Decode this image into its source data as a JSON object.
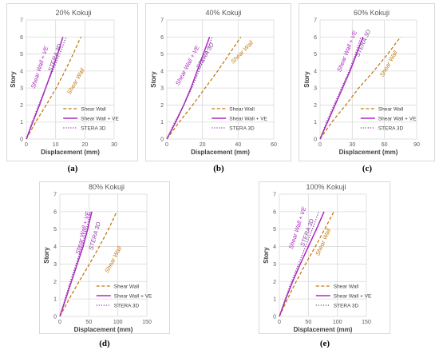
{
  "legend_labels": [
    "Shear Wall",
    "Shear Wall + VE",
    "STERA 3D"
  ],
  "inline_labels": [
    "Shear Wall + VE",
    "STERA 3D",
    "Shear Wall"
  ],
  "colors": {
    "shear_wall": "#c47a12",
    "shear_wall_ve": "#b026c6",
    "stera_3d": "#8a3fa0",
    "grid": "#d9d9d9",
    "axis_text": "#595959"
  },
  "captions": [
    "(a)",
    "(b)",
    "(c)",
    "(d)",
    "(e)"
  ],
  "chart_data": [
    {
      "type": "line",
      "title": "20% Kokuji",
      "xlabel": "Displacement (mm)",
      "ylabel": "Story",
      "xlim": [
        0,
        30
      ],
      "ylim": [
        0,
        7
      ],
      "xticks": [
        0,
        10,
        20,
        30
      ],
      "yticks": [
        0,
        1,
        2,
        3,
        4,
        5,
        6,
        7
      ],
      "grid": true,
      "legend": "lower-right",
      "series": [
        {
          "name": "Shear Wall",
          "style": "dashed",
          "x": [
            0,
            3.2,
            6.8,
            10.2,
            13.2,
            16.0,
            18.6
          ],
          "y": [
            0,
            1,
            2,
            3,
            4,
            5,
            6
          ]
        },
        {
          "name": "Shear Wall + VE",
          "style": "solid",
          "x": [
            0,
            2.2,
            4.5,
            6.6,
            8.7,
            10.7,
            12.5
          ],
          "y": [
            0,
            1,
            2,
            3,
            4,
            5,
            6
          ]
        },
        {
          "name": "STERA 3D",
          "style": "dotted",
          "x": [
            0,
            2.0,
            4.2,
            6.6,
            9.0,
            11.4,
            13.6
          ],
          "y": [
            0,
            1,
            2,
            3,
            4,
            5,
            6
          ]
        }
      ]
    },
    {
      "type": "line",
      "title": "40% Kokuji",
      "xlabel": "Displacement (mm)",
      "ylabel": "Story",
      "xlim": [
        0,
        60
      ],
      "ylim": [
        0,
        7
      ],
      "xticks": [
        0,
        20,
        40,
        60
      ],
      "yticks": [
        0,
        1,
        2,
        3,
        4,
        5,
        6,
        7
      ],
      "grid": true,
      "legend": "lower-right",
      "series": [
        {
          "name": "Shear Wall",
          "style": "dashed",
          "x": [
            0,
            7,
            14.5,
            21.5,
            28.5,
            35,
            41.5
          ],
          "y": [
            0,
            1,
            2,
            3,
            4,
            5,
            6
          ]
        },
        {
          "name": "Shear Wall + VE",
          "style": "solid",
          "x": [
            0,
            5,
            9.5,
            13.5,
            17,
            20.5,
            24
          ],
          "y": [
            0,
            1,
            2,
            3,
            4,
            5,
            6
          ]
        },
        {
          "name": "STERA 3D",
          "style": "dotted",
          "x": [
            0,
            4.5,
            9.5,
            14,
            18,
            22,
            25.5
          ],
          "y": [
            0,
            1,
            2,
            3,
            4,
            5,
            6
          ]
        }
      ]
    },
    {
      "type": "line",
      "title": "60% Kokuji",
      "xlabel": "Displacement (mm)",
      "ylabel": "Story",
      "xlim": [
        0,
        90
      ],
      "ylim": [
        0,
        7
      ],
      "xticks": [
        0,
        30,
        60,
        90
      ],
      "yticks": [
        0,
        1,
        2,
        3,
        4,
        5,
        6,
        7
      ],
      "grid": true,
      "legend": "lower-right",
      "series": [
        {
          "name": "Shear Wall",
          "style": "dashed",
          "x": [
            0,
            11,
            24,
            36,
            50,
            63,
            75
          ],
          "y": [
            0,
            1,
            2,
            3,
            4,
            5,
            6
          ]
        },
        {
          "name": "Shear Wall + VE",
          "style": "solid",
          "x": [
            0,
            7,
            14,
            21,
            28,
            34,
            40
          ],
          "y": [
            0,
            1,
            2,
            3,
            4,
            5,
            6
          ]
        },
        {
          "name": "STERA 3D",
          "style": "dotted",
          "x": [
            0,
            6,
            13,
            20,
            27,
            33,
            38
          ],
          "y": [
            0,
            1,
            2,
            3,
            4,
            5,
            6
          ]
        }
      ]
    },
    {
      "type": "line",
      "title": "80% Kokuji",
      "xlabel": "Displacement (mm)",
      "ylabel": "Story",
      "xlim": [
        0,
        150
      ],
      "ylim": [
        0,
        7
      ],
      "xticks": [
        0,
        50,
        100,
        150
      ],
      "yticks": [
        0,
        1,
        2,
        3,
        4,
        5,
        6,
        7
      ],
      "grid": true,
      "legend": "lower-right",
      "series": [
        {
          "name": "Shear Wall",
          "style": "dashed",
          "x": [
            0,
            16,
            33,
            51,
            68,
            84,
            98
          ],
          "y": [
            0,
            1,
            2,
            3,
            4,
            5,
            6
          ]
        },
        {
          "name": "Shear Wall + VE",
          "style": "solid",
          "x": [
            0,
            10,
            20,
            30,
            40,
            48,
            55
          ],
          "y": [
            0,
            1,
            2,
            3,
            4,
            5,
            6
          ]
        },
        {
          "name": "STERA 3D",
          "style": "dotted",
          "x": [
            0,
            9,
            18,
            28,
            38,
            46,
            53
          ],
          "y": [
            0,
            1,
            2,
            3,
            4,
            5,
            6
          ]
        }
      ]
    },
    {
      "type": "line",
      "title": "100% Kokuji",
      "xlabel": "Displacement (mm)",
      "ylabel": "Story",
      "xlim": [
        0,
        150
      ],
      "ylim": [
        0,
        7
      ],
      "xticks": [
        0,
        50,
        100,
        150
      ],
      "yticks": [
        0,
        1,
        2,
        3,
        4,
        5,
        6,
        7
      ],
      "grid": true,
      "legend": "lower-right",
      "series": [
        {
          "name": "Shear Wall",
          "style": "dashed",
          "x": [
            0,
            14,
            29,
            45,
            62,
            78,
            94
          ],
          "y": [
            0,
            1,
            2,
            3,
            4,
            5,
            6
          ]
        },
        {
          "name": "Shear Wall + VE",
          "style": "solid",
          "x": [
            0,
            11,
            23,
            36,
            50,
            64,
            77
          ],
          "y": [
            0,
            1,
            2,
            3,
            4,
            5,
            6
          ]
        },
        {
          "name": "STERA 3D",
          "style": "dotted",
          "x": [
            0,
            10,
            21,
            33,
            45,
            57,
            68
          ],
          "y": [
            0,
            1,
            2,
            3,
            4,
            5,
            6
          ]
        }
      ]
    }
  ]
}
